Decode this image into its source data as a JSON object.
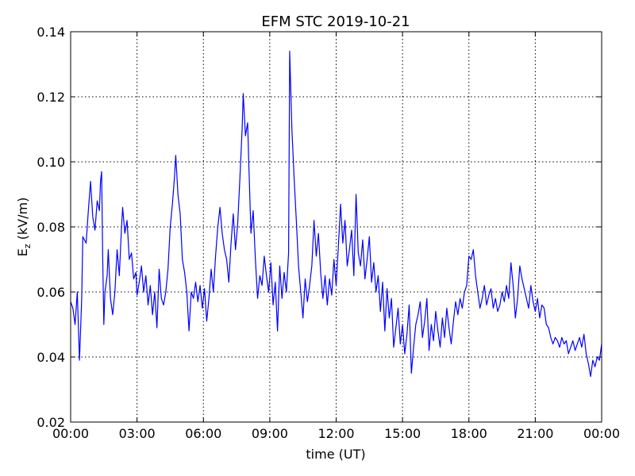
{
  "chart_data": {
    "type": "line",
    "title": "EFM STC    2019-10-21",
    "xlabel": "time (UT)",
    "ylabel": {
      "base": "E",
      "subscript": "z",
      "rest": " (kV/m)"
    },
    "color": "#0000ff",
    "grid": true,
    "xlim": [
      0,
      24
    ],
    "xticks": [
      {
        "value": 0,
        "label": "00:00"
      },
      {
        "value": 3,
        "label": "03:00"
      },
      {
        "value": 6,
        "label": "06:00"
      },
      {
        "value": 9,
        "label": "09:00"
      },
      {
        "value": 12,
        "label": "12:00"
      },
      {
        "value": 15,
        "label": "15:00"
      },
      {
        "value": 18,
        "label": "18:00"
      },
      {
        "value": 21,
        "label": "21:00"
      },
      {
        "value": 24,
        "label": "00:00"
      }
    ],
    "ylim": [
      0.02,
      0.14
    ],
    "yticks": [
      0.02,
      0.04,
      0.06,
      0.08,
      {
        "value": 0.1,
        "label": "0.10"
      },
      0.12,
      0.14
    ],
    "x": [
      0,
      0.1,
      0.2,
      0.3,
      0.4,
      0.5,
      0.55,
      0.7,
      0.8,
      0.9,
      1.0,
      1.1,
      1.2,
      1.3,
      1.35,
      1.4,
      1.45,
      1.5,
      1.55,
      1.65,
      1.7,
      1.8,
      1.9,
      2.0,
      2.1,
      2.2,
      2.3,
      2.35,
      2.45,
      2.55,
      2.65,
      2.75,
      2.85,
      2.95,
      3.0,
      3.1,
      3.2,
      3.3,
      3.4,
      3.5,
      3.6,
      3.7,
      3.8,
      3.9,
      4.0,
      4.1,
      4.2,
      4.3,
      4.4,
      4.5,
      4.6,
      4.7,
      4.75,
      4.85,
      4.95,
      5.05,
      5.15,
      5.25,
      5.35,
      5.45,
      5.55,
      5.65,
      5.75,
      5.85,
      5.95,
      6.05,
      6.15,
      6.25,
      6.35,
      6.45,
      6.55,
      6.65,
      6.75,
      6.85,
      6.95,
      7.05,
      7.15,
      7.25,
      7.35,
      7.45,
      7.55,
      7.65,
      7.75,
      7.8,
      7.9,
      8.0,
      8.05,
      8.15,
      8.25,
      8.35,
      8.45,
      8.55,
      8.65,
      8.75,
      8.85,
      8.95,
      9.05,
      9.15,
      9.25,
      9.35,
      9.45,
      9.55,
      9.65,
      9.75,
      9.85,
      9.9,
      10.0,
      10.1,
      10.2,
      10.3,
      10.4,
      10.5,
      10.6,
      10.7,
      10.8,
      10.9,
      11.0,
      11.1,
      11.2,
      11.3,
      11.4,
      11.5,
      11.6,
      11.7,
      11.8,
      11.9,
      12.0,
      12.1,
      12.2,
      12.3,
      12.4,
      12.5,
      12.6,
      12.7,
      12.8,
      12.9,
      13.0,
      13.1,
      13.2,
      13.3,
      13.4,
      13.5,
      13.6,
      13.7,
      13.8,
      13.9,
      14.0,
      14.1,
      14.2,
      14.3,
      14.4,
      14.5,
      14.6,
      14.7,
      14.8,
      14.9,
      15.0,
      15.1,
      15.2,
      15.3,
      15.4,
      15.5,
      15.6,
      15.7,
      15.8,
      15.9,
      16.0,
      16.1,
      16.2,
      16.3,
      16.4,
      16.5,
      16.6,
      16.7,
      16.8,
      16.9,
      17.0,
      17.1,
      17.2,
      17.3,
      17.4,
      17.5,
      17.6,
      17.7,
      17.8,
      17.9,
      18.0,
      18.1,
      18.2,
      18.3,
      18.4,
      18.5,
      18.6,
      18.7,
      18.8,
      18.9,
      19.0,
      19.1,
      19.2,
      19.3,
      19.4,
      19.5,
      19.6,
      19.7,
      19.8,
      19.9,
      20.0,
      20.1,
      20.2,
      20.3,
      20.4,
      20.5,
      20.6,
      20.7,
      20.8,
      20.9,
      21.0,
      21.1,
      21.2,
      21.3,
      21.4,
      21.5,
      21.6,
      21.7,
      21.8,
      21.9,
      22.0,
      22.1,
      22.2,
      22.3,
      22.4,
      22.5,
      22.6,
      22.7,
      22.8,
      22.9,
      23.0,
      23.1,
      23.2,
      23.3,
      23.4,
      23.5,
      23.6,
      23.7,
      23.8,
      23.9,
      24.0
    ],
    "values": [
      0.057,
      0.055,
      0.05,
      0.06,
      0.039,
      0.058,
      0.077,
      0.075,
      0.085,
      0.094,
      0.083,
      0.079,
      0.088,
      0.085,
      0.094,
      0.097,
      0.07,
      0.05,
      0.06,
      0.065,
      0.073,
      0.058,
      0.053,
      0.06,
      0.073,
      0.065,
      0.08,
      0.086,
      0.078,
      0.082,
      0.07,
      0.072,
      0.064,
      0.066,
      0.059,
      0.063,
      0.068,
      0.06,
      0.065,
      0.056,
      0.062,
      0.053,
      0.06,
      0.049,
      0.067,
      0.058,
      0.056,
      0.06,
      0.067,
      0.08,
      0.087,
      0.096,
      0.102,
      0.09,
      0.084,
      0.07,
      0.066,
      0.06,
      0.048,
      0.06,
      0.058,
      0.063,
      0.057,
      0.062,
      0.055,
      0.061,
      0.051,
      0.058,
      0.067,
      0.06,
      0.071,
      0.08,
      0.086,
      0.078,
      0.073,
      0.07,
      0.063,
      0.075,
      0.084,
      0.073,
      0.081,
      0.095,
      0.11,
      0.121,
      0.108,
      0.112,
      0.1,
      0.078,
      0.085,
      0.07,
      0.058,
      0.065,
      0.062,
      0.071,
      0.065,
      0.06,
      0.069,
      0.056,
      0.063,
      0.048,
      0.068,
      0.058,
      0.066,
      0.06,
      0.072,
      0.134,
      0.11,
      0.095,
      0.082,
      0.068,
      0.06,
      0.052,
      0.064,
      0.057,
      0.062,
      0.068,
      0.082,
      0.071,
      0.078,
      0.066,
      0.058,
      0.065,
      0.056,
      0.064,
      0.059,
      0.07,
      0.062,
      0.074,
      0.087,
      0.075,
      0.082,
      0.068,
      0.073,
      0.079,
      0.065,
      0.09,
      0.072,
      0.068,
      0.076,
      0.064,
      0.07,
      0.077,
      0.063,
      0.069,
      0.06,
      0.065,
      0.054,
      0.063,
      0.048,
      0.061,
      0.052,
      0.058,
      0.043,
      0.049,
      0.055,
      0.044,
      0.05,
      0.041,
      0.047,
      0.056,
      0.035,
      0.043,
      0.05,
      0.053,
      0.057,
      0.046,
      0.051,
      0.058,
      0.042,
      0.05,
      0.045,
      0.054,
      0.048,
      0.043,
      0.052,
      0.046,
      0.055,
      0.049,
      0.044,
      0.051,
      0.057,
      0.053,
      0.058,
      0.055,
      0.06,
      0.062,
      0.071,
      0.07,
      0.073,
      0.065,
      0.06,
      0.055,
      0.058,
      0.062,
      0.056,
      0.059,
      0.061,
      0.055,
      0.058,
      0.054,
      0.056,
      0.06,
      0.057,
      0.062,
      0.058,
      0.069,
      0.062,
      0.052,
      0.058,
      0.068,
      0.064,
      0.061,
      0.058,
      0.055,
      0.062,
      0.057,
      0.054,
      0.058,
      0.052,
      0.056,
      0.055,
      0.05,
      0.049,
      0.046,
      0.044,
      0.046,
      0.045,
      0.043,
      0.046,
      0.044,
      0.045,
      0.041,
      0.043,
      0.045,
      0.042,
      0.044,
      0.046,
      0.043,
      0.047,
      0.041,
      0.038,
      0.034,
      0.039,
      0.037,
      0.04,
      0.039,
      0.044
    ]
  }
}
